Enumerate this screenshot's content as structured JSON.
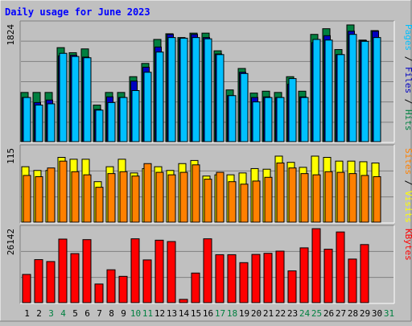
{
  "chart_data": {
    "type": "bar",
    "title": "Daily usage for June 2023",
    "categories": [
      "1",
      "2",
      "3",
      "4",
      "5",
      "6",
      "7",
      "8",
      "9",
      "10",
      "11",
      "12",
      "13",
      "14",
      "15",
      "16",
      "17",
      "18",
      "19",
      "20",
      "21",
      "22",
      "23",
      "24",
      "25",
      "26",
      "27",
      "28",
      "29",
      "30",
      "31"
    ],
    "weekend_days": [
      "3",
      "4",
      "10",
      "11",
      "17",
      "18",
      "24",
      "25",
      "31"
    ],
    "panels": [
      {
        "id": "hits",
        "ymax_label": "1824",
        "ymax": 1824,
        "legend": [
          {
            "text": "Pages",
            "color": "#00c0ff"
          },
          {
            "text": " / ",
            "color": "#000000"
          },
          {
            "text": "Files",
            "color": "#0000c0"
          },
          {
            "text": " / ",
            "color": "#000000"
          },
          {
            "text": "Hits",
            "color": "#008040"
          }
        ],
        "series": [
          {
            "name": "Hits",
            "color": "#008040",
            "values": [
              780,
              780,
              780,
              1490,
              1410,
              1470,
              580,
              780,
              780,
              1030,
              1240,
              1620,
              1710,
              1650,
              1720,
              1720,
              1440,
              820,
              1160,
              770,
              800,
              780,
              1030,
              800,
              1700,
              1790,
              1460,
              1850,
              1610,
              1760,
              0
            ]
          },
          {
            "name": "Files",
            "color": "#0000c0",
            "values": [
              700,
              620,
              660,
              1360,
              1370,
              1340,
              510,
              710,
              700,
              960,
              1180,
              1500,
              1700,
              1630,
              1700,
              1650,
              1390,
              730,
              1100,
              700,
              710,
              700,
              910,
              710,
              1570,
              1680,
              1380,
              1750,
              1600,
              1750,
              0
            ]
          },
          {
            "name": "Pages",
            "color": "#00c0ff",
            "values": [
              700,
              580,
              600,
              1400,
              1350,
              1330,
              500,
              620,
              700,
              810,
              1100,
              1420,
              1650,
              1640,
              1650,
              1630,
              1380,
              730,
              1080,
              630,
              700,
              700,
              1000,
              700,
              1620,
              1610,
              1380,
              1700,
              1590,
              1650,
              0
            ]
          }
        ]
      },
      {
        "id": "visits",
        "ymax_label": "115",
        "ymax": 115,
        "legend": [
          {
            "text": "Sites",
            "color": "#ff8000"
          },
          {
            "text": " / ",
            "color": "#000000"
          },
          {
            "text": "Visits",
            "color": "#ffff00"
          }
        ],
        "series": [
          {
            "name": "Visits",
            "color": "#ffff00",
            "values": [
              89,
              83,
              83,
              104,
              101,
              101,
              65,
              89,
              101,
              79,
              86,
              89,
              83,
              94,
              99,
              74,
              76,
              76,
              79,
              86,
              85,
              106,
              96,
              88,
              106,
              104,
              98,
              98,
              97,
              95,
              0
            ]
          },
          {
            "name": "Sites",
            "color": "#ff8000",
            "values": [
              75,
              73,
              87,
              98,
              81,
              76,
              56,
              78,
              81,
              74,
              94,
              80,
              76,
              80,
              92,
              69,
              80,
              65,
              61,
              66,
              72,
              95,
              87,
              78,
              76,
              81,
              80,
              78,
              75,
              73,
              0
            ]
          }
        ]
      },
      {
        "id": "kbytes",
        "ymax_label": "26142",
        "ymax": 26142,
        "legend": [
          {
            "text": "KBytes",
            "color": "#ff0000"
          }
        ],
        "series": [
          {
            "name": "KBytes",
            "color": "#ff0000",
            "values": [
              10300,
              15700,
              15000,
              23200,
              17900,
              23000,
              6800,
              12000,
              9600,
              23300,
              15600,
              22800,
              22300,
              1200,
              10800,
              23300,
              17500,
              17500,
              14600,
              17600,
              18000,
              18800,
              11600,
              20000,
              27000,
              19500,
              25800,
              15900,
              21200,
              0,
              0
            ]
          }
        ]
      }
    ]
  }
}
